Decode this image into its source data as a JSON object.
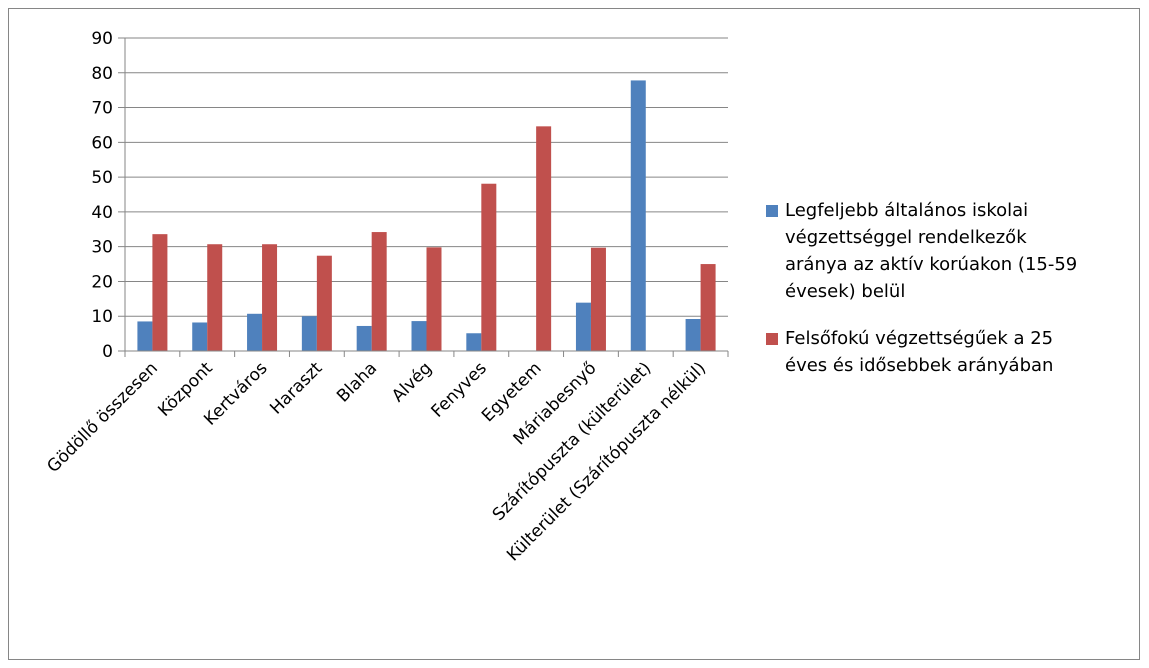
{
  "chart_data": {
    "type": "bar",
    "categories": [
      "Gödöllő összesen",
      "Központ",
      "Kertváros",
      "Haraszt",
      "Blaha",
      "Alvég",
      "Fenyves",
      "Egyetem",
      "Máriabesnyő",
      "Szárítópuszta (külterület)",
      "Külterület (Szárítópuszta nélkül)"
    ],
    "series": [
      {
        "name": "Legfeljebb általános iskolai végzettséggel rendelkezők aránya az aktív korúakon (15-59 évesek) belül",
        "legend_lines": [
          "Legfeljebb általános iskolai",
          "végzettséggel rendelkezők",
          "aránya az aktív korúakon (15-59",
          "évesek) belül"
        ],
        "color": "#4f81bd",
        "values": [
          8.5,
          8.2,
          10.7,
          10.0,
          7.2,
          8.6,
          5.1,
          0,
          13.9,
          77.8,
          9.2
        ]
      },
      {
        "name": "Felsőfokú végzettségűek a 25 éves és idősebbek arányában",
        "legend_lines": [
          "Felsőfokú végzettségűek a 25",
          "éves és idősebbek arányában"
        ],
        "color": "#c0504d",
        "values": [
          33.6,
          30.7,
          30.7,
          27.4,
          34.2,
          29.8,
          48.1,
          64.6,
          29.7,
          0,
          25.0
        ]
      }
    ],
    "yticks": [
      "0",
      "10",
      "20",
      "30",
      "40",
      "50",
      "60",
      "70",
      "80",
      "90"
    ],
    "ylim": [
      0,
      90
    ],
    "grid": true,
    "legend_position": "right",
    "title": "",
    "xlabel": "",
    "ylabel": ""
  }
}
